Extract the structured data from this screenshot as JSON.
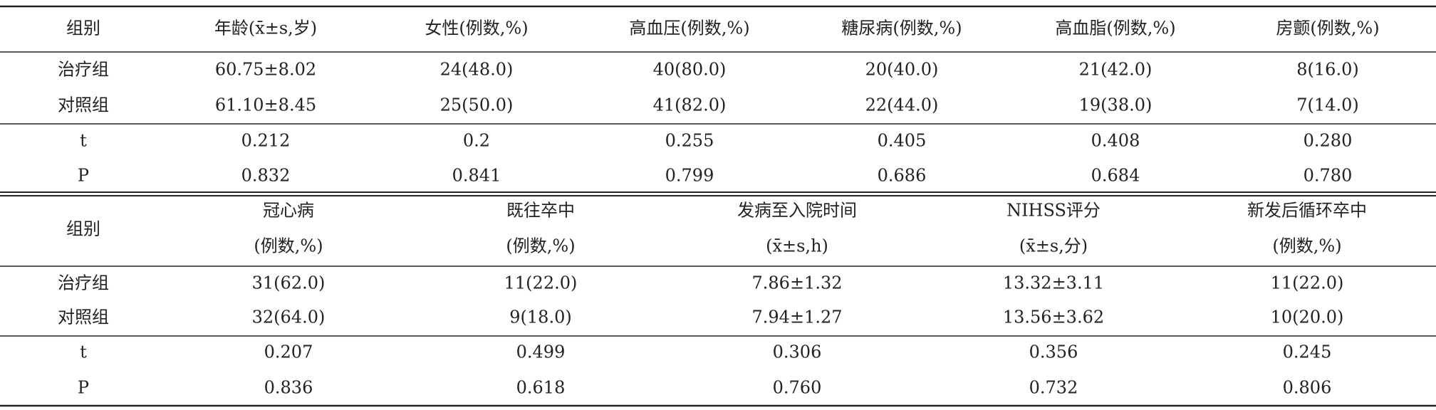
{
  "table1": {
    "header": [
      "组别",
      "年龄(x̄±s,岁)",
      "女性(例数,%)",
      "高血压(例数,%)",
      "糖尿病(例数,%)",
      "高血脂(例数,%)",
      "房颤(例数,%)"
    ],
    "rows": [
      [
        "治疗组",
        "60.75±8.02",
        "24(48.0)",
        "40(80.0)",
        "20(40.0)",
        "21(42.0)",
        "8(16.0)"
      ],
      [
        "对照组",
        "61.10±8.45",
        "25(50.0)",
        "41(82.0)",
        "22(44.0)",
        "19(38.0)",
        "7(14.0)"
      ],
      [
        "t",
        "0.212",
        "0.2",
        "0.255",
        "0.405",
        "0.408",
        "0.280"
      ],
      [
        "P",
        "0.832",
        "0.841",
        "0.799",
        "0.686",
        "0.684",
        "0.780"
      ]
    ]
  },
  "table2": {
    "header": [
      [
        "组别"
      ],
      [
        "冠心病",
        "(例数,%)"
      ],
      [
        "既往卒中",
        "(例数,%)"
      ],
      [
        "发病至入院时间",
        "(x̄±s,h)"
      ],
      [
        "NIHSS评分",
        "(x̄±s,分)"
      ],
      [
        "新发后循环卒中",
        "(例数,%)"
      ]
    ],
    "rows": [
      [
        "治疗组",
        "31(62.0)",
        "11(22.0)",
        "7.86±1.32",
        "13.32±3.11",
        "11(22.0)"
      ],
      [
        "对照组",
        "32(64.0)",
        "9(18.0)",
        "7.94±1.27",
        "13.56±3.62",
        "10(20.0)"
      ],
      [
        "t",
        "0.207",
        "0.499",
        "0.306",
        "0.356",
        "0.245"
      ],
      [
        "P",
        "0.836",
        "0.618",
        "0.760",
        "0.732",
        "0.806"
      ]
    ]
  }
}
